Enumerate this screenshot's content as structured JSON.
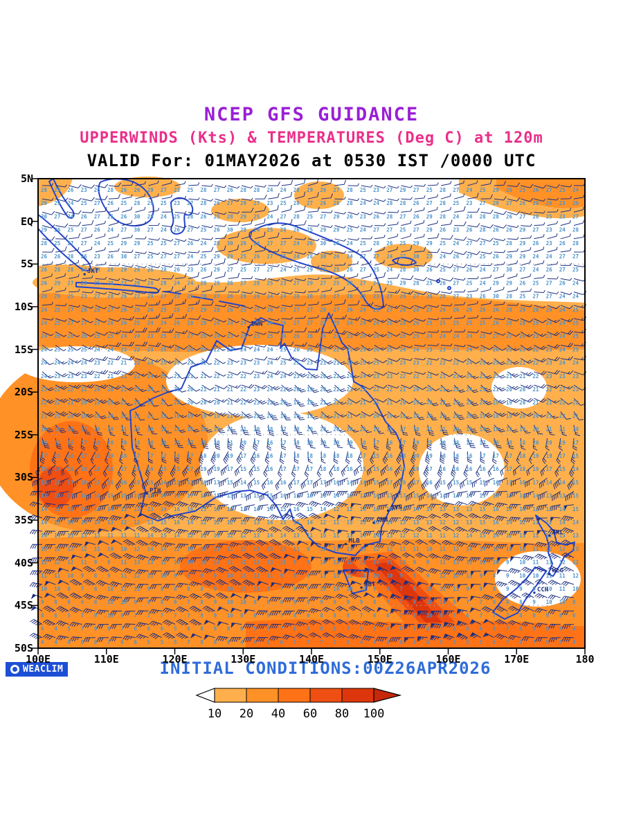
{
  "header": {
    "line1": "NCEP GFS GUIDANCE",
    "line2": "UPPERWINDS (Kts) & TEMPERATURES (Deg C) at 120m",
    "line3": "VALID For: 01MAY2026 at 0530 IST /0000 UTC",
    "line1_color": "#9a1fd6",
    "line2_color": "#ea2f8a"
  },
  "footer": {
    "initial_conditions": "INITIAL CONDITIONS:00Z26APR2026",
    "color": "#2f6cd8",
    "logo_text": "WEACLIM",
    "logo_bg": "#1d4fd6"
  },
  "axes": {
    "lat": [
      "5N",
      "EQ",
      "5S",
      "10S",
      "15S",
      "20S",
      "25S",
      "30S",
      "35S",
      "40S",
      "45S",
      "50S"
    ],
    "lon": [
      "100E",
      "110E",
      "120E",
      "130E",
      "140E",
      "150E",
      "160E",
      "170E",
      "180"
    ]
  },
  "legend": {
    "values": [
      "10",
      "20",
      "40",
      "60",
      "80",
      "100"
    ],
    "colors": [
      "#ffb04c",
      "#ff9127",
      "#ff7216",
      "#ef4f12",
      "#de360c",
      "#c6280a"
    ]
  },
  "map": {
    "coast_color": "#2244cc",
    "barb_color": "#1c2e80",
    "temp_color": "#4c93cc",
    "grid_dot_color": "#9aa0a8",
    "frame_color": "#000000",
    "barbs": {
      "step": 19.2,
      "shaft": 14
    }
  },
  "cities": [
    {
      "label": "JKT",
      "lon": 106.8,
      "lat": -6.2
    },
    {
      "label": "DWN",
      "lon": 130.8,
      "lat": -12.4
    },
    {
      "label": "PTH",
      "lon": 115.9,
      "lat": -31.9
    },
    {
      "label": "SYN",
      "lon": 151.2,
      "lat": -33.9
    },
    {
      "label": "CNB",
      "lon": 149.1,
      "lat": -35.3
    },
    {
      "label": "MLB",
      "lon": 145.0,
      "lat": -37.8
    },
    {
      "label": "HBT",
      "lon": 147.3,
      "lat": -42.9
    },
    {
      "label": "AKL",
      "lon": 174.8,
      "lat": -36.8
    },
    {
      "label": "WLG",
      "lon": 174.8,
      "lat": -41.3
    },
    {
      "label": "CCH",
      "lon": 172.6,
      "lat": -43.5
    }
  ],
  "chart_data": {
    "type": "heatmap",
    "model": "NCEP GFS",
    "field_shaded": "wind speed (Kts) at 120 m",
    "field_numbers": "temperature (Deg C) at 120 m",
    "valid_time": "01MAY2026 0530 IST / 0000 UTC",
    "initial_time": "00Z 26 APR 2026",
    "lon_range": [
      100,
      180
    ],
    "lat_range": [
      -50,
      5
    ],
    "shade_levels_kts": [
      10,
      20,
      40,
      60,
      80,
      100
    ],
    "legend_position": "bottom center",
    "temperature_profile": [
      {
        "lat": "5N",
        "typical_temp_c": 27
      },
      {
        "lat": "EQ",
        "typical_temp_c": 28
      },
      {
        "lat": "10S",
        "typical_temp_c": 27
      },
      {
        "lat": "20S",
        "typical_temp_c": 24
      },
      {
        "lat": "30S",
        "typical_temp_c": 17
      },
      {
        "lat": "40S",
        "typical_temp_c": 11
      },
      {
        "lat": "50S",
        "typical_temp_c": 6
      }
    ],
    "wind_regimes": [
      {
        "zone": "equatorial 5N-10S",
        "winds": "light easterlies 5-15 kt, mostly unshaded (<10 kt) with 10-20 kt patches"
      },
      {
        "zone": "trade belt 10S-25S",
        "winds": "E-SE trades 15-30 kt, solid 20-40 kt band near 10S-14S"
      },
      {
        "zone": "mid-latitudes 30S-50S",
        "winds": "westerlies 25-60+ kt; strongest (60-100 kt) streak from Tasmania toward 160E/48S"
      }
    ],
    "stations_plotted": [
      "JKT",
      "DWN",
      "PTH",
      "SYN",
      "CNB",
      "MLB",
      "HBT",
      "AKL",
      "WLG",
      "CCH"
    ]
  }
}
